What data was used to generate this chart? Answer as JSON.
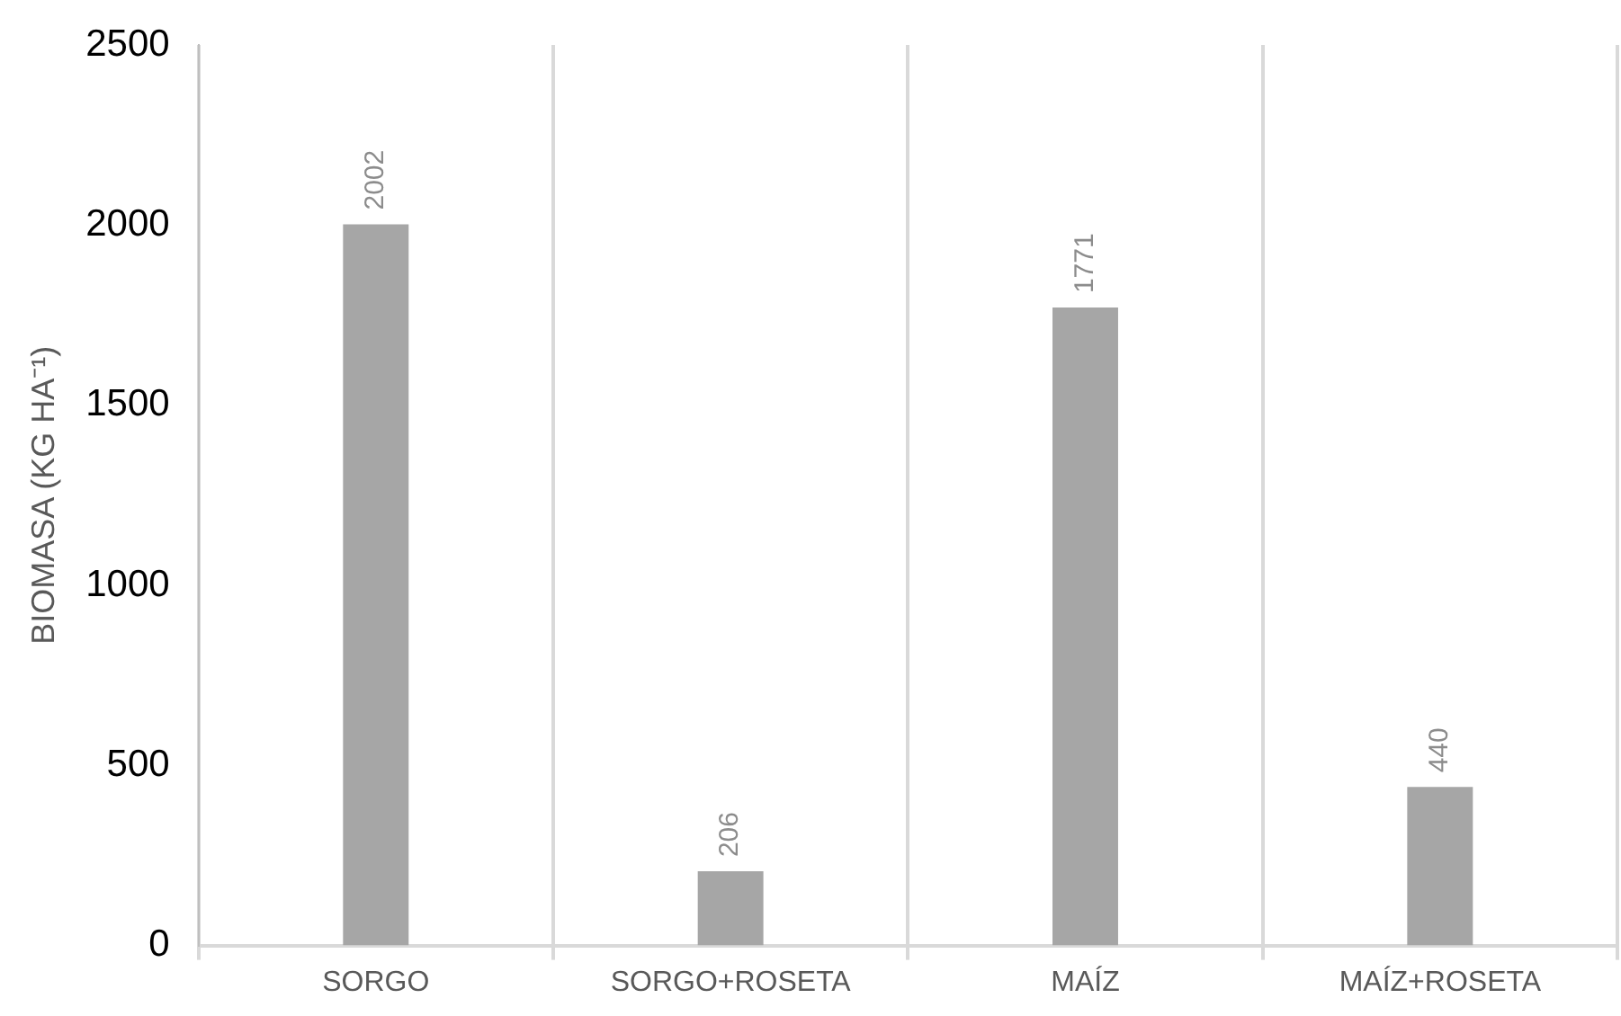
{
  "chart_data": {
    "type": "bar",
    "ylabel": "BIOMASA (KG HA⁻¹)",
    "categories": [
      "SORGO",
      "SORGO+ROSETA",
      "MAÍZ",
      "MAÍZ+ROSETA"
    ],
    "values": [
      2002,
      206,
      1771,
      440
    ],
    "color": "#a6a6a6",
    "ylim": [
      0,
      2500
    ],
    "yticks": [
      0,
      500,
      1000,
      1500,
      2000,
      2500
    ],
    "grid": "x",
    "data_labels": true,
    "legend": false
  }
}
